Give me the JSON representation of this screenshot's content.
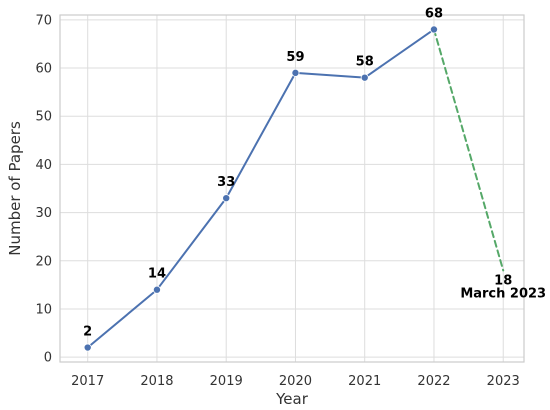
{
  "chart_data": {
    "type": "line",
    "x": [
      2017,
      2018,
      2019,
      2020,
      2021,
      2022,
      2023
    ],
    "xlabel": "Year",
    "ylabel": "Number of Papers",
    "xlim": [
      2016.6,
      2023.3
    ],
    "ylim": [
      -1,
      71
    ],
    "xticks": [
      "2017",
      "2018",
      "2019",
      "2020",
      "2021",
      "2022",
      "2023"
    ],
    "yticks": [
      "0",
      "10",
      "20",
      "30",
      "40",
      "50",
      "60",
      "70"
    ],
    "grid": true,
    "series": [
      {
        "style": "solid",
        "color": "#4c72b0",
        "markers": true,
        "x": [
          2017,
          2018,
          2019,
          2020,
          2021,
          2022
        ],
        "values": [
          2,
          14,
          33,
          59,
          58,
          68
        ]
      },
      {
        "style": "dashed",
        "color": "#55a868",
        "markers": false,
        "x": [
          2022,
          2023
        ],
        "values": [
          68,
          18
        ]
      }
    ],
    "data_labels": [
      {
        "x": 2017,
        "y": 2,
        "text": "2"
      },
      {
        "x": 2018,
        "y": 14,
        "text": "14"
      },
      {
        "x": 2019,
        "y": 33,
        "text": "33"
      },
      {
        "x": 2020,
        "y": 59,
        "text": "59"
      },
      {
        "x": 2021,
        "y": 58,
        "text": "58"
      },
      {
        "x": 2022,
        "y": 68,
        "text": "68"
      },
      {
        "x": 2023,
        "y": 18,
        "text": "18"
      }
    ],
    "annotations": [
      {
        "x": 2023,
        "y": 18,
        "text": "March 2023"
      }
    ]
  }
}
